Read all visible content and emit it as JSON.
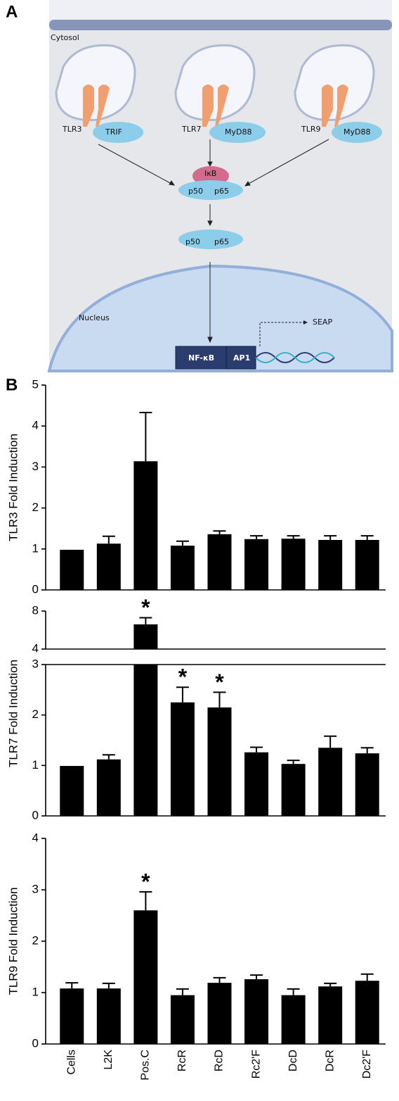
{
  "diagram": {
    "panel_label": "A",
    "cytosol": "Cytosol",
    "receptors": [
      {
        "name": "TLR3",
        "adaptor": "TRIF"
      },
      {
        "name": "TLR7",
        "adaptor": "MyD88"
      },
      {
        "name": "TLR9",
        "adaptor": "MyD88"
      }
    ],
    "complex": {
      "inhibitor": "IκB",
      "subunits": [
        "p50",
        "p65"
      ]
    },
    "free_dimer": [
      "p50",
      "p65"
    ],
    "nucleus": "Nucleus",
    "reporter": "SEAP",
    "promoter": [
      "NF-κB",
      "AP1"
    ]
  },
  "panel_b_label": "B",
  "chart_data": [
    {
      "type": "bar",
      "y_label": "TLR3 Fold Induction",
      "color": "#000000",
      "values": [
        0.98,
        1.13,
        3.14,
        1.08,
        1.36,
        1.24,
        1.25,
        1.22,
        1.22
      ],
      "errors": [
        null,
        0.18,
        1.19,
        0.11,
        0.08,
        0.08,
        0.07,
        0.1,
        0.1
      ],
      "ylim": [
        0,
        5
      ],
      "yticks": [
        0,
        1,
        2,
        3,
        4,
        5
      ]
    },
    {
      "type": "bar",
      "y_label": "TLR7 Fold Induction",
      "color": "#000000",
      "values": [
        0.99,
        1.12,
        6.6,
        2.25,
        2.15,
        1.26,
        1.03,
        1.35,
        1.24
      ],
      "errors": [
        null,
        0.09,
        0.7,
        0.3,
        0.3,
        0.1,
        0.07,
        0.23,
        0.11
      ],
      "significance": [
        null,
        null,
        "*",
        "*",
        "*",
        null,
        null,
        null,
        null
      ],
      "ylim": [
        0,
        8
      ],
      "axis_break": [
        3,
        4
      ],
      "yticks": [
        0,
        1,
        2,
        3,
        4,
        8
      ]
    },
    {
      "type": "bar",
      "y_label": "TLR9 Fold Induction",
      "color": "#000000",
      "categories": [
        "Cells",
        "L2K",
        "Pos.C",
        "RcR",
        "RcD",
        "Rc2'F",
        "DcD",
        "DcR",
        "Dc2'F"
      ],
      "values": [
        1.08,
        1.08,
        2.6,
        0.95,
        1.19,
        1.26,
        0.95,
        1.12,
        1.23
      ],
      "errors": [
        0.11,
        0.1,
        0.36,
        0.12,
        0.1,
        0.08,
        0.12,
        0.06,
        0.13
      ],
      "significance": [
        null,
        null,
        "*",
        null,
        null,
        null,
        null,
        null,
        null
      ],
      "ylim": [
        0,
        4
      ],
      "yticks": [
        0,
        1,
        2,
        3,
        4
      ]
    }
  ]
}
